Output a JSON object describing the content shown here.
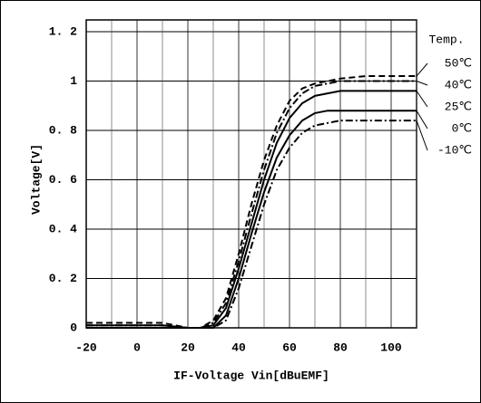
{
  "chart_data": {
    "type": "line",
    "x_label": "IF-Voltage Vin[dBuEMF]",
    "y_label": "Voltage[V]",
    "legend_title": "Temp.",
    "x": [
      -20,
      -10,
      0,
      10,
      20,
      25,
      30,
      35,
      40,
      45,
      50,
      55,
      60,
      65,
      70,
      75,
      80,
      90,
      100,
      110
    ],
    "series": [
      {
        "name": "50℃",
        "color": "#000000",
        "dash": "7 4",
        "values": [
          0.02,
          0.02,
          0.02,
          0.02,
          0,
          0,
          0.03,
          0.12,
          0.3,
          0.5,
          0.68,
          0.82,
          0.92,
          0.97,
          0.99,
          1.0,
          1.01,
          1.02,
          1.02,
          1.02
        ]
      },
      {
        "name": "40℃",
        "color": "#000000",
        "dash": "8 3 2 3",
        "values": [
          0.01,
          0.01,
          0.01,
          0.01,
          0,
          0,
          0.02,
          0.1,
          0.27,
          0.46,
          0.64,
          0.79,
          0.89,
          0.95,
          0.98,
          0.99,
          1.0,
          1.0,
          1.0,
          1.0
        ]
      },
      {
        "name": "25℃",
        "color": "#000000",
        "dash": "none",
        "values": [
          0.01,
          0.01,
          0.01,
          0.01,
          0,
          0,
          0.01,
          0.08,
          0.24,
          0.42,
          0.6,
          0.75,
          0.85,
          0.91,
          0.94,
          0.95,
          0.96,
          0.96,
          0.96,
          0.96
        ]
      },
      {
        "name": "0℃",
        "color": "#000000",
        "dash": "none",
        "values": [
          0,
          0,
          0,
          0,
          0,
          0,
          0,
          0.05,
          0.2,
          0.38,
          0.55,
          0.69,
          0.78,
          0.84,
          0.87,
          0.88,
          0.88,
          0.88,
          0.88,
          0.88
        ]
      },
      {
        "name": "-10℃",
        "color": "#000000",
        "dash": "8 3 2 3",
        "values": [
          0,
          0,
          0,
          0,
          0,
          0,
          0,
          0.03,
          0.16,
          0.33,
          0.5,
          0.64,
          0.73,
          0.79,
          0.82,
          0.83,
          0.84,
          0.84,
          0.84,
          0.84
        ]
      }
    ],
    "xlim": [
      -20,
      110
    ],
    "xticks": [
      -20,
      0,
      20,
      40,
      60,
      80,
      100
    ],
    "x_minor_grid": [
      -10,
      10,
      30,
      50,
      70,
      90,
      110
    ],
    "ylim": [
      0,
      1.2
    ],
    "yticks": [
      0,
      {
        "value": 0.2,
        "label": "0. 2"
      },
      {
        "value": 0.4,
        "label": "0. 4"
      },
      {
        "value": 0.6,
        "label": "0. 6"
      },
      {
        "value": 0.8,
        "label": "0. 8"
      },
      1,
      {
        "value": 1.2,
        "label": "1. 2"
      }
    ],
    "grid": true,
    "legend": "right"
  }
}
